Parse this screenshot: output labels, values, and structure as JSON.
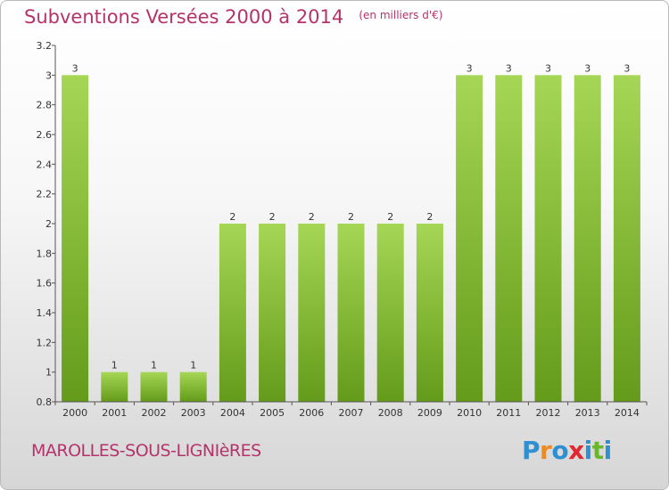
{
  "header": {
    "title": "Subventions Versées 2000 à 2014",
    "subtitle": "(en milliers d'€)"
  },
  "footer": {
    "commune": "MAROLLES-SOUS-LIGNIèRES",
    "logo_letters": [
      {
        "ch": "P",
        "color": "#2e8fd1"
      },
      {
        "ch": "r",
        "color": "#f08a1c"
      },
      {
        "ch": "o",
        "color": "#2e8fd1"
      },
      {
        "ch": "x",
        "color": "#e3262f"
      },
      {
        "ch": "i",
        "color": "#2e8fd1"
      },
      {
        "ch": "t",
        "color": "#6ab72b"
      },
      {
        "ch": "i",
        "color": "#2e8fd1"
      }
    ]
  },
  "colors": {
    "bar_light": "#a6d655",
    "bar_dark": "#649b1a",
    "text": "#333333",
    "grid": "#cfcfcf"
  },
  "chart_data": {
    "type": "bar",
    "categories": [
      "2000",
      "2001",
      "2002",
      "2003",
      "2004",
      "2005",
      "2006",
      "2007",
      "2008",
      "2009",
      "2010",
      "2011",
      "2012",
      "2013",
      "2014"
    ],
    "values": [
      3,
      1,
      1,
      1,
      2,
      2,
      2,
      2,
      2,
      2,
      3,
      3,
      3,
      3,
      3
    ],
    "data_labels": [
      "3",
      "1",
      "1",
      "1",
      "2",
      "2",
      "2",
      "2",
      "2",
      "2",
      "3",
      "3",
      "3",
      "3",
      "3"
    ],
    "yticks": [
      0.8,
      1,
      1.2,
      1.4,
      1.6,
      1.8,
      2,
      2.2,
      2.4,
      2.6,
      2.8,
      3,
      3.2
    ],
    "ytick_labels": [
      "0.8",
      "1",
      "1.2",
      "1.4",
      "1.6",
      "1.8",
      "2",
      "2.2",
      "2.4",
      "2.6",
      "2.8",
      "3",
      "3.2"
    ],
    "ylim": [
      0.8,
      3.2
    ],
    "grid": false,
    "legend": "none"
  }
}
